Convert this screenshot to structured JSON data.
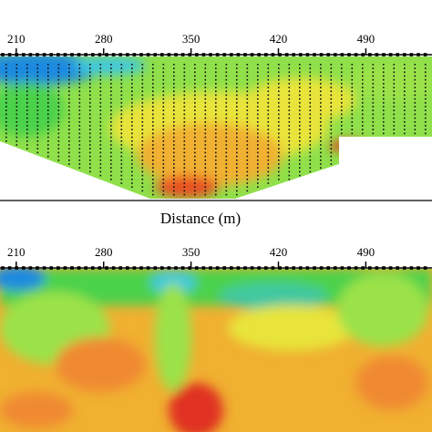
{
  "chart_data": [
    {
      "type": "contour",
      "xlim": [
        197,
        543
      ],
      "xticks": [
        210,
        280,
        350,
        420,
        490
      ],
      "xlabel": "Distance (m)"
    },
    {
      "type": "contour",
      "xlim": [
        197,
        543
      ],
      "xticks": [
        210,
        280,
        350,
        420,
        490
      ]
    }
  ]
}
